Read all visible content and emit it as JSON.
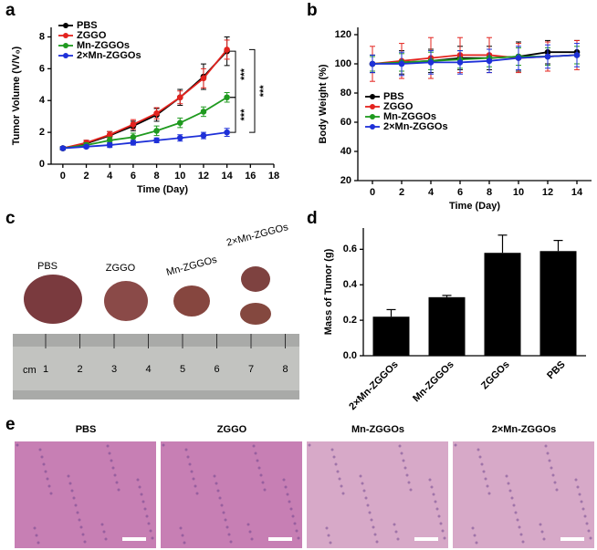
{
  "panel_labels": [
    "a",
    "b",
    "c",
    "d",
    "e"
  ],
  "chart_data": [
    {
      "type": "line",
      "xlabel": "Time (Day)",
      "ylabel": "Tumor Volume (V/V₀)",
      "x": [
        0,
        2,
        4,
        6,
        8,
        10,
        12,
        14
      ],
      "xlim": [
        -1,
        18
      ],
      "xticks": [
        0,
        2,
        4,
        6,
        8,
        10,
        12,
        14,
        16,
        18
      ],
      "ylim": [
        0,
        8.6
      ],
      "yticks": [
        0,
        2,
        4,
        6,
        8
      ],
      "legend": "upper-left",
      "annotations": [
        "***",
        "***",
        "***"
      ],
      "series": [
        {
          "name": "PBS",
          "color": "#000000",
          "values": [
            1.0,
            1.3,
            1.8,
            2.4,
            3.1,
            4.2,
            5.5,
            7.1
          ],
          "errors": [
            0.1,
            0.2,
            0.25,
            0.3,
            0.4,
            0.5,
            0.8,
            0.9
          ]
        },
        {
          "name": "ZGGO",
          "color": "#e3231e",
          "values": [
            1.0,
            1.35,
            1.85,
            2.5,
            3.2,
            4.2,
            5.4,
            7.2
          ],
          "errors": [
            0.1,
            0.15,
            0.2,
            0.3,
            0.35,
            0.4,
            0.6,
            0.6
          ]
        },
        {
          "name": "Mn-ZGGOs",
          "color": "#1f9a1f",
          "values": [
            1.0,
            1.2,
            1.5,
            1.7,
            2.1,
            2.6,
            3.3,
            4.2
          ],
          "errors": [
            0.1,
            0.15,
            0.2,
            0.25,
            0.3,
            0.3,
            0.3,
            0.3
          ]
        },
        {
          "name": "2×Mn-ZGGOs",
          "color": "#1e30d8",
          "values": [
            1.0,
            1.1,
            1.2,
            1.35,
            1.5,
            1.65,
            1.8,
            2.0
          ],
          "errors": [
            0.1,
            0.1,
            0.15,
            0.15,
            0.15,
            0.2,
            0.2,
            0.25
          ]
        }
      ]
    },
    {
      "type": "line",
      "xlabel": "Time (Day)",
      "ylabel": "Body Weight (%)",
      "x": [
        0,
        2,
        4,
        6,
        8,
        10,
        12,
        14
      ],
      "xlim": [
        -1,
        15
      ],
      "xticks": [
        0,
        2,
        4,
        6,
        8,
        10,
        12,
        14
      ],
      "ylim": [
        20,
        125
      ],
      "yticks": [
        20,
        40,
        60,
        80,
        100,
        120
      ],
      "legend": "lower-left",
      "series": [
        {
          "name": "PBS",
          "color": "#000000",
          "values": [
            100,
            101,
            102,
            104,
            104,
            105,
            108,
            108
          ],
          "errors": [
            6,
            8,
            8,
            8,
            8,
            10,
            8,
            8
          ]
        },
        {
          "name": "ZGGO",
          "color": "#e3231e",
          "values": [
            100,
            102,
            104,
            106,
            106,
            104,
            105,
            106
          ],
          "errors": [
            12,
            12,
            14,
            12,
            12,
            10,
            10,
            10
          ]
        },
        {
          "name": "Mn-ZGGOs",
          "color": "#1f9a1f",
          "values": [
            100,
            101,
            102,
            103,
            104,
            105,
            105,
            106
          ],
          "errors": [
            5,
            6,
            6,
            6,
            6,
            6,
            6,
            6
          ]
        },
        {
          "name": "2×Mn-ZGGOs",
          "color": "#1e30d8",
          "values": [
            100,
            100,
            101,
            101,
            102,
            104,
            105,
            106
          ],
          "errors": [
            6,
            8,
            8,
            8,
            8,
            8,
            8,
            8
          ]
        }
      ]
    },
    {
      "type": "bar",
      "ylabel": "Mass of Tumor (g)",
      "color": "#000000",
      "categories": [
        "2×Mn-ZGGOs",
        "Mn-ZGGOs",
        "ZGGOs",
        "PBS"
      ],
      "values": [
        0.22,
        0.33,
        0.58,
        0.59
      ],
      "errors": [
        0.04,
        0.01,
        0.1,
        0.06
      ],
      "ylim": [
        0,
        0.72
      ],
      "yticks": [
        {
          "value": 0,
          "label": "0.0"
        },
        0.2,
        0.4,
        0.6
      ]
    }
  ],
  "photo": {
    "labels": [
      "PBS",
      "ZGGO",
      "Mn-ZGGOs",
      "2×Mn-ZGGOs"
    ],
    "ruler_unit": "cm",
    "ruler_numbers": [
      "1",
      "2",
      "3",
      "4",
      "5",
      "6",
      "7",
      "8"
    ]
  },
  "histology": {
    "labels": [
      "PBS",
      "ZGGO",
      "Mn-ZGGOs",
      "2×Mn-ZGGOs"
    ]
  }
}
